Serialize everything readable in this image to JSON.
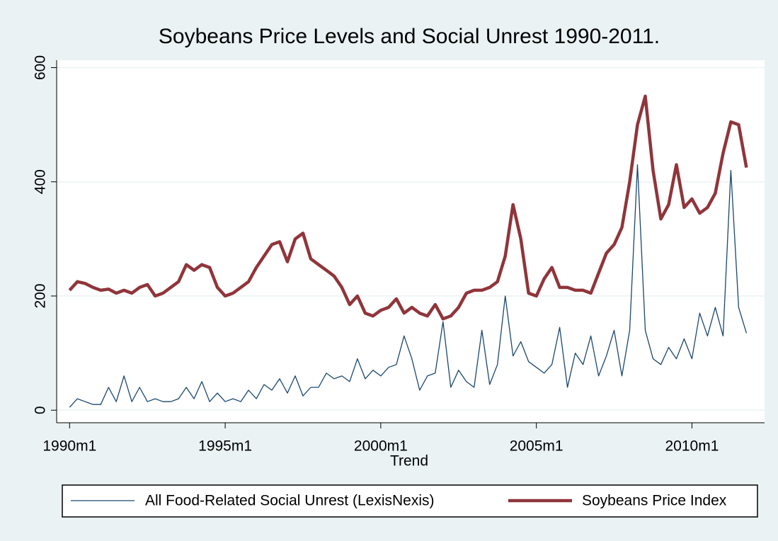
{
  "chart_data": {
    "type": "line",
    "title": "Soybeans Price Levels and Social Unrest 1990-2011.",
    "x_label": "Trend",
    "x": [
      360,
      363,
      366,
      369,
      372,
      375,
      378,
      381,
      384,
      387,
      390,
      393,
      396,
      399,
      402,
      405,
      408,
      411,
      414,
      417,
      420,
      423,
      426,
      429,
      432,
      435,
      438,
      441,
      444,
      447,
      450,
      453,
      456,
      459,
      462,
      465,
      468,
      471,
      474,
      477,
      480,
      483,
      486,
      489,
      492,
      495,
      498,
      501,
      504,
      507,
      510,
      513,
      516,
      519,
      522,
      525,
      528,
      531,
      534,
      537,
      540,
      543,
      546,
      549,
      552,
      555,
      558,
      561,
      564,
      567,
      570,
      573,
      576,
      579,
      582,
      585,
      588,
      591,
      594,
      597,
      600,
      603,
      606,
      609,
      612,
      615,
      618,
      621
    ],
    "series": [
      {
        "name": "All Food-Related Social Unrest (LexisNexis)",
        "color": "#1a476f",
        "width": 1.3,
        "values": [
          5,
          20,
          15,
          10,
          10,
          40,
          15,
          60,
          15,
          40,
          15,
          20,
          15,
          15,
          20,
          40,
          20,
          50,
          15,
          30,
          15,
          20,
          15,
          35,
          20,
          45,
          35,
          55,
          30,
          60,
          25,
          40,
          40,
          65,
          55,
          60,
          50,
          90,
          55,
          70,
          60,
          75,
          80,
          130,
          90,
          35,
          60,
          65,
          155,
          40,
          70,
          50,
          40,
          140,
          45,
          80,
          200,
          95,
          120,
          85,
          75,
          65,
          80,
          145,
          40,
          100,
          80,
          130,
          60,
          95,
          140,
          60,
          140,
          430,
          140,
          90,
          80,
          110,
          90,
          125,
          90,
          170,
          130,
          180,
          130,
          420,
          180,
          135
        ]
      },
      {
        "name": "Soybeans Price Index",
        "color": "#90353b",
        "width": 4.5,
        "values": [
          210,
          225,
          222,
          215,
          210,
          212,
          205,
          210,
          205,
          215,
          220,
          200,
          205,
          215,
          225,
          255,
          245,
          255,
          250,
          215,
          200,
          205,
          215,
          225,
          250,
          270,
          290,
          295,
          260,
          300,
          310,
          265,
          255,
          245,
          235,
          215,
          185,
          200,
          170,
          165,
          175,
          180,
          195,
          170,
          180,
          170,
          165,
          185,
          160,
          165,
          180,
          205,
          210,
          210,
          215,
          225,
          270,
          360,
          300,
          205,
          200,
          230,
          250,
          215,
          215,
          210,
          210,
          205,
          240,
          275,
          290,
          320,
          400,
          500,
          550,
          420,
          335,
          360,
          430,
          355,
          370,
          345,
          355,
          380,
          450,
          505,
          500,
          425
        ]
      }
    ],
    "xlim": [
      355,
      628
    ],
    "xticks": [
      {
        "value": 360,
        "label": "1990m1"
      },
      {
        "value": 420,
        "label": "1995m1"
      },
      {
        "value": 480,
        "label": "2000m1"
      },
      {
        "value": 540,
        "label": "2005m1"
      },
      {
        "value": 600,
        "label": "2010m1"
      }
    ],
    "ylim": [
      -22,
      613
    ],
    "yticks": [
      0,
      200,
      400,
      600
    ],
    "grid": true,
    "legend": "bottom"
  }
}
